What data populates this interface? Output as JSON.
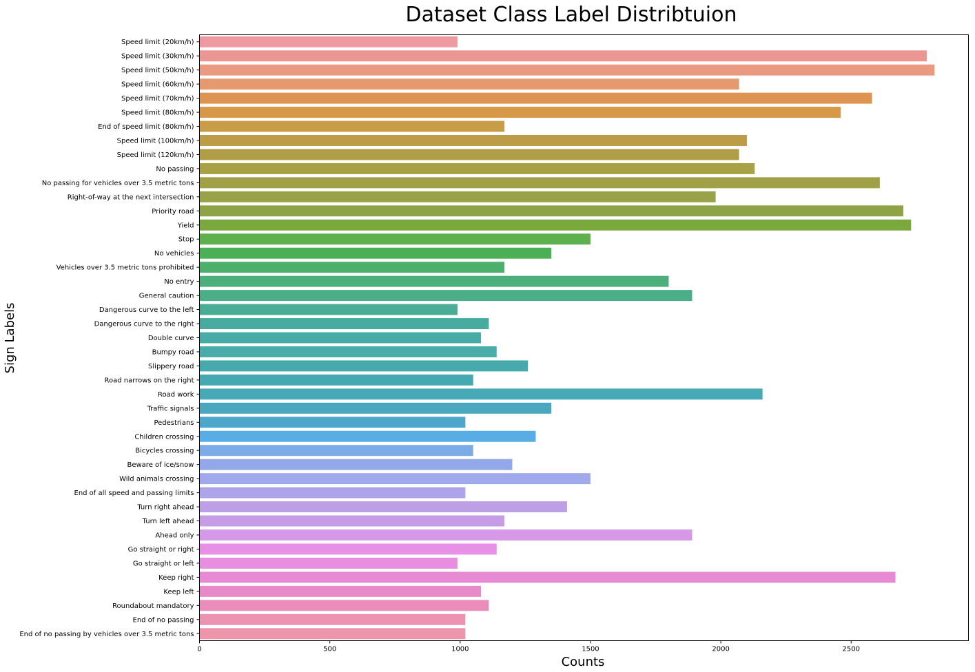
{
  "chart_data": {
    "type": "bar",
    "orientation": "horizontal",
    "title": "Dataset Class Label Distribtuion",
    "xlabel": "Counts",
    "ylabel": "Sign Labels",
    "xlim": [
      0,
      2950
    ],
    "xticks": [
      0,
      500,
      1000,
      1500,
      2000,
      2500
    ],
    "grid": false,
    "categories": [
      "Speed limit (20km/h)",
      "Speed limit (30km/h)",
      "Speed limit (50km/h)",
      "Speed limit (60km/h)",
      "Speed limit (70km/h)",
      "Speed limit (80km/h)",
      "End of speed limit (80km/h)",
      "Speed limit (100km/h)",
      "Speed limit (120km/h)",
      "No passing",
      "No passing for vehicles over 3.5 metric tons",
      "Right-of-way at the next intersection",
      "Priority road",
      "Yield",
      "Stop",
      "No vehicles",
      "Vehicles over 3.5 metric tons prohibited",
      "No entry",
      "General caution",
      "Dangerous curve to the left",
      "Dangerous curve to the right",
      "Double curve",
      "Bumpy road",
      "Slippery road",
      "Road narrows on the right",
      "Road work",
      "Traffic signals",
      "Pedestrians",
      "Children crossing",
      "Bicycles crossing",
      "Beware of ice/snow",
      "Wild animals crossing",
      "End of all speed and passing limits",
      "Turn right ahead",
      "Turn left ahead",
      "Ahead only",
      "Go straight or right",
      "Go straight or left",
      "Keep right",
      "Keep left",
      "Roundabout mandatory",
      "End of no passing",
      "End of no passing by vehicles over 3.5 metric tons"
    ],
    "values": [
      990,
      2790,
      2820,
      2070,
      2580,
      2460,
      1170,
      2100,
      2070,
      2130,
      2610,
      1980,
      2700,
      2730,
      1500,
      1350,
      1170,
      1800,
      1890,
      990,
      1110,
      1080,
      1140,
      1260,
      1050,
      2160,
      1350,
      1020,
      1290,
      1050,
      1200,
      1500,
      1020,
      1410,
      1170,
      1890,
      1140,
      990,
      2670,
      1080,
      1110,
      1020,
      1020
    ],
    "colors": [
      "#ed9aa1",
      "#eb9692",
      "#e99a80",
      "#e6986f",
      "#de9450",
      "#d79947",
      "#c99c47",
      "#bc9c48",
      "#b09e46",
      "#a9a146",
      "#a0a146",
      "#99a248",
      "#8ea346",
      "#7aa83d",
      "#5fb04e",
      "#4aaf55",
      "#4cb06c",
      "#4cb07c",
      "#4aaf88",
      "#48ad94",
      "#47ac9f",
      "#47aca6",
      "#48acab",
      "#46aaad",
      "#45a9b2",
      "#47a9b6",
      "#4aa8be",
      "#4ea7ca",
      "#58aee4",
      "#7aace8",
      "#93a8e8",
      "#a0a9ec",
      "#aea4ea",
      "#bd9fe6",
      "#c79ce6",
      "#d599e8",
      "#e690e6",
      "#e78ee0",
      "#e68ad4",
      "#e98ac8",
      "#eb8dbb",
      "#ec92b2",
      "#ec95ab"
    ]
  }
}
